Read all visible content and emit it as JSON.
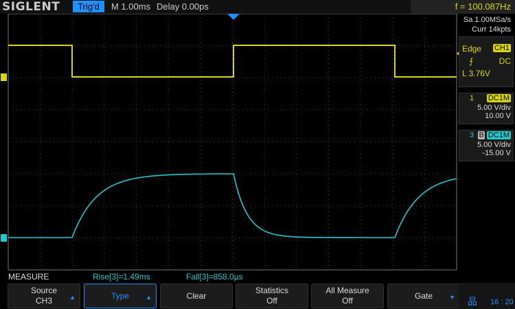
{
  "header": {
    "brand": "SIGLENT",
    "status": "Trig'd",
    "timebase": "M 1.00ms",
    "delay": "Delay 0.00ps",
    "frequency": "f = 100.087Hz"
  },
  "acquisition": {
    "sample_rate": "Sa 1.00MSa/s",
    "memory": "Curr 14kpts"
  },
  "trigger": {
    "type": "Edge",
    "source": "CH1",
    "slope_icon": "rising-edge-icon",
    "coupling": "DC",
    "level": "L  3.76V"
  },
  "channels": [
    {
      "number": "1",
      "coupling": "DC1M",
      "scale": "5.00 V/div",
      "offset": "10.00 V",
      "color": "#d8d800"
    },
    {
      "number": "3",
      "coupling": "DC1M",
      "bw_icon": "B",
      "scale": "5.00 V/div",
      "offset": "-15.00 V",
      "color": "#20c8d0"
    }
  ],
  "measure": {
    "title": "MEASURE",
    "rise": "Rise[3]=1.49ms",
    "fall": "Fall[3]=858.0µs"
  },
  "softkeys": [
    {
      "label": "Source",
      "value": "CH3",
      "arrow": "up"
    },
    {
      "label": "Type",
      "value": "",
      "arrow": "up",
      "selected": true
    },
    {
      "label": "Clear",
      "value": ""
    },
    {
      "label": "Statistics",
      "value": "Off"
    },
    {
      "label": "All Measure",
      "value": "Off"
    },
    {
      "label": "Gate",
      "value": "",
      "arrow": "down"
    }
  ],
  "status_bar": {
    "network_icon": "lan-icon",
    "time": "16 : 20"
  },
  "colors": {
    "ch1": "#d8d800",
    "ch3": "#20c8d0",
    "accent": "#1e90ff"
  }
}
